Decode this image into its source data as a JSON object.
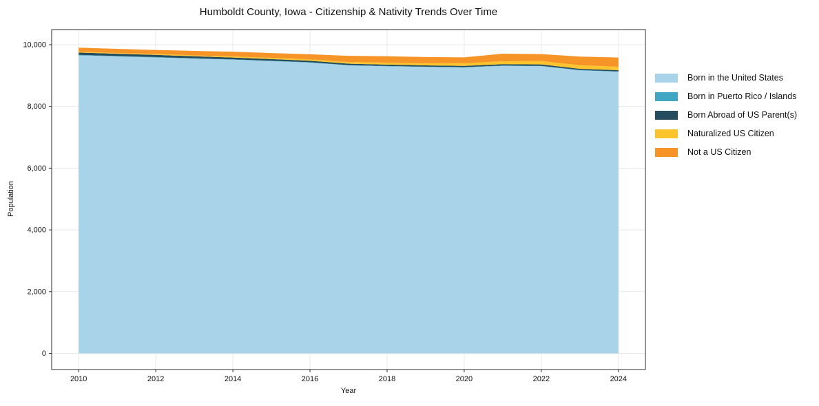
{
  "figure": {
    "background": "#ffffff"
  },
  "chart_data": {
    "type": "area",
    "stacked": true,
    "title": "Humboldt County, Iowa - Citizenship & Nativity Trends Over Time",
    "xlabel": "Year",
    "ylabel": "Population",
    "x": [
      2010,
      2011,
      2012,
      2013,
      2014,
      2015,
      2016,
      2017,
      2018,
      2019,
      2020,
      2021,
      2022,
      2023,
      2024
    ],
    "series": [
      {
        "name": "Born in the United States",
        "color": "#A8D3E8",
        "values": [
          9655,
          9620,
          9585,
          9550,
          9515,
          9470,
          9420,
          9330,
          9300,
          9280,
          9265,
          9315,
          9305,
          9170,
          9125
        ]
      },
      {
        "name": "Born in Puerto Rico / Islands",
        "color": "#41A6C3",
        "values": [
          15,
          15,
          15,
          10,
          10,
          10,
          10,
          10,
          10,
          10,
          10,
          10,
          10,
          10,
          10
        ]
      },
      {
        "name": "Born Abroad of US Parent(s)",
        "color": "#254C5E",
        "values": [
          75,
          72,
          70,
          65,
          60,
          55,
          50,
          45,
          45,
          40,
          40,
          45,
          45,
          40,
          40
        ]
      },
      {
        "name": "Naturalized US Citizen",
        "color": "#FCC42C",
        "values": [
          25,
          25,
          30,
          30,
          35,
          40,
          45,
          55,
          65,
          70,
          85,
          95,
          110,
          115,
          110
        ]
      },
      {
        "name": "Not a US Citizen",
        "color": "#F79428",
        "values": [
          135,
          133,
          130,
          145,
          155,
          155,
          165,
          200,
          205,
          200,
          190,
          245,
          225,
          280,
          300
        ]
      }
    ],
    "xlim": [
      2009.3,
      2024.7
    ],
    "ylim": [
      -525,
      10490
    ],
    "xticks": [
      2010,
      2012,
      2014,
      2016,
      2018,
      2020,
      2022,
      2024
    ],
    "xtick_labels": [
      "2010",
      "2012",
      "2014",
      "2016",
      "2018",
      "2020",
      "2022",
      "2024"
    ],
    "yticks": [
      0,
      2000,
      4000,
      6000,
      8000,
      10000
    ],
    "ytick_labels": [
      "0",
      "2,000",
      "4,000",
      "6,000",
      "8,000",
      "10,000"
    ],
    "grid": true,
    "grid_color": "#e9e9e9",
    "spine_color": "#2b2b2b",
    "tick_color": "#2b2b2b",
    "tick_label_color": "#111111",
    "legend_position": "right-outside"
  }
}
